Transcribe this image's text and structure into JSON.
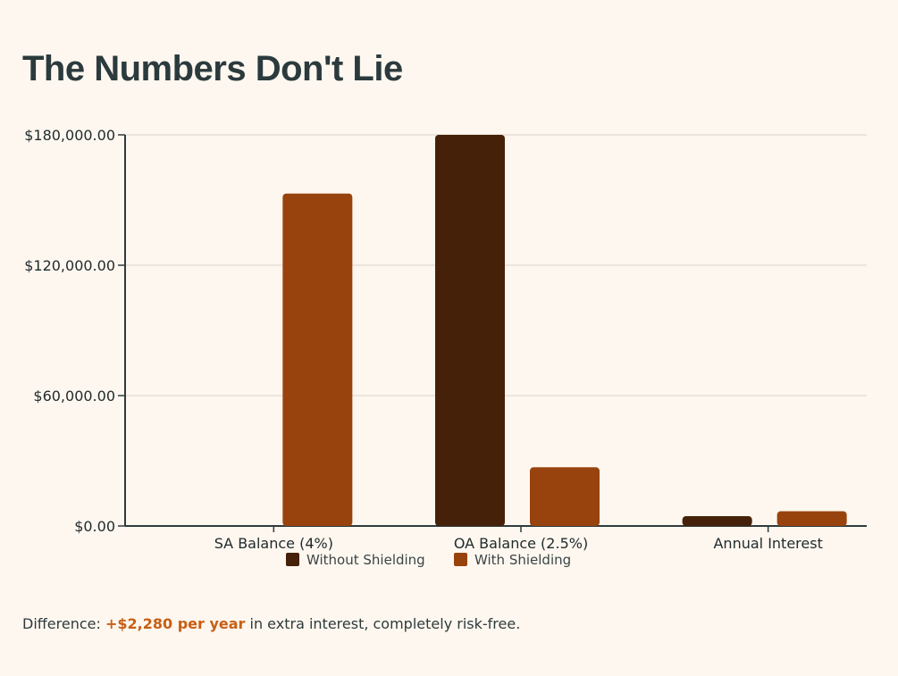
{
  "chart_data": {
    "type": "bar",
    "title": "The Numbers Don't Lie",
    "categories": [
      "SA Balance (4%)",
      "OA Balance (2.5%)",
      "Annual Interest"
    ],
    "series": [
      {
        "name": "Without Shielding",
        "color": "#45210a",
        "values": [
          0,
          180000,
          4500
        ]
      },
      {
        "name": "With Shielding",
        "color": "#98430e",
        "values": [
          153000,
          27000,
          6780
        ]
      }
    ],
    "ylim": [
      0,
      180000
    ],
    "yticks": [
      0,
      60000,
      120000,
      180000
    ],
    "ytick_labels": [
      "$0.00",
      "$60,000.00",
      "$120,000.00",
      "$180,000.00"
    ],
    "xlabel": "",
    "ylabel": "",
    "grid": true,
    "legend": "bottom-center"
  },
  "footnote": {
    "prefix": "Difference: ",
    "highlight": "+$2,280 per year",
    "suffix": " in extra interest, completely risk-free."
  },
  "colors": {
    "background": "#fef7ef",
    "accent": "#c75f14",
    "axis": "#2f3b3d",
    "grid": "#d9d2cb"
  }
}
